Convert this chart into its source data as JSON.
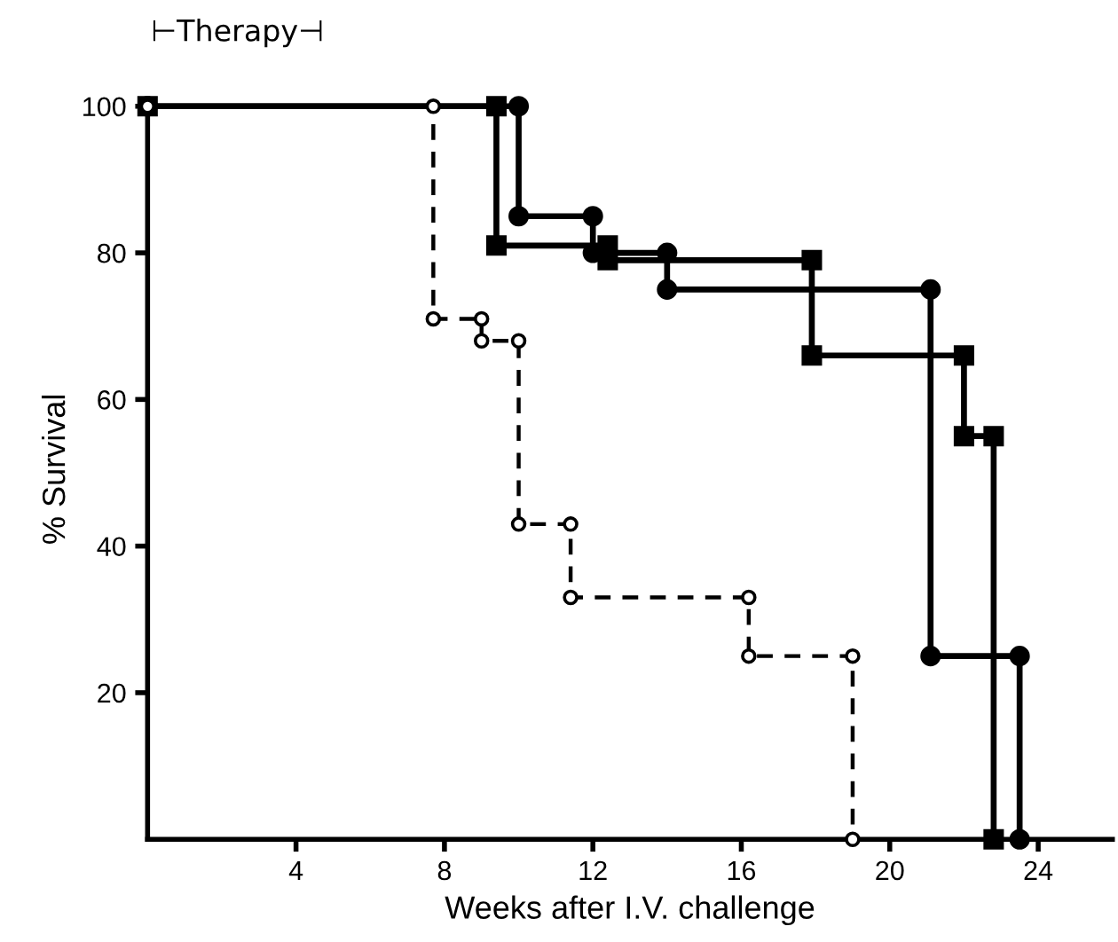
{
  "chart_data": {
    "type": "line",
    "xlabel": "Weeks after I.V. challenge",
    "ylabel": "% Survival",
    "annotations": [
      "⊢Therapy⊣"
    ],
    "xlim": [
      0,
      26
    ],
    "ylim": [
      0,
      101
    ],
    "xticks": [
      4,
      8,
      12,
      16,
      20,
      24
    ],
    "yticks": [
      20,
      40,
      60,
      80,
      100
    ],
    "grid": false,
    "legend": false,
    "series": [
      {
        "color": "#000000",
        "marker": "circle",
        "line_style": "solid",
        "x": [
          0,
          10.0,
          10.0,
          12.0,
          12.0,
          14.0,
          14.0,
          21.1,
          21.1,
          23.5,
          23.5
        ],
        "values": [
          100,
          100,
          85,
          85,
          80,
          80,
          75,
          75,
          25,
          25,
          0
        ]
      },
      {
        "color": "#000000",
        "marker": "square",
        "line_style": "solid",
        "x": [
          0,
          9.4,
          9.4,
          12.4,
          12.4,
          17.9,
          17.9,
          22.0,
          22.0,
          22.8,
          22.8
        ],
        "values": [
          100,
          100,
          81,
          81,
          79,
          79,
          66,
          66,
          55,
          55,
          0
        ]
      },
      {
        "color": "#000000",
        "marker": "circle",
        "line_style": "dashed",
        "x": [
          0,
          7.7,
          7.7,
          9.0,
          9.0,
          10.0,
          10.0,
          11.4,
          11.4,
          16.2,
          16.2,
          19.0,
          19.0
        ],
        "values": [
          100,
          100,
          71,
          71,
          68,
          68,
          43,
          43,
          33,
          33,
          25,
          25,
          0
        ]
      }
    ]
  }
}
